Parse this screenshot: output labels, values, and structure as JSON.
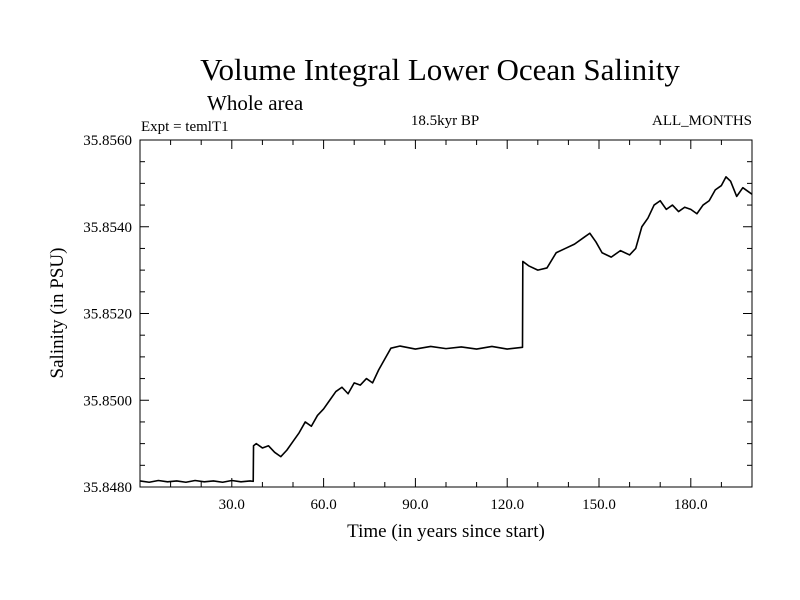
{
  "chart_data": {
    "type": "line",
    "title": "Volume Integral Lower Ocean Salinity",
    "subtitle": "Whole area",
    "annotations": {
      "left": "Expt = temlT1",
      "center": "18.5kyr BP",
      "right": "ALL_MONTHS"
    },
    "xlabel": "Time (in years since start)",
    "ylabel": "Salinity (in PSU)",
    "xlim": [
      0,
      200
    ],
    "ylim": [
      35.848,
      35.856
    ],
    "xticks": [
      {
        "value": 30,
        "label": "30.0"
      },
      {
        "value": 60,
        "label": "60.0"
      },
      {
        "value": 90,
        "label": "90.0"
      },
      {
        "value": 120,
        "label": "120.0"
      },
      {
        "value": 150,
        "label": "150.0"
      },
      {
        "value": 180,
        "label": "180.0"
      }
    ],
    "yticks": [
      {
        "value": 35.848,
        "label": "35.8480"
      },
      {
        "value": 35.85,
        "label": "35.8500"
      },
      {
        "value": 35.852,
        "label": "35.8520"
      },
      {
        "value": 35.854,
        "label": "35.8540"
      },
      {
        "value": 35.856,
        "label": "35.8560"
      }
    ],
    "grid": false,
    "series": [
      {
        "name": "Salinity",
        "color": "#000000",
        "x": [
          0,
          3,
          6,
          9,
          12,
          15,
          18,
          21,
          24,
          27,
          30,
          33,
          36,
          37,
          37.1,
          38,
          40,
          42,
          44,
          46,
          48,
          50,
          52,
          54,
          56,
          58,
          60,
          62,
          64,
          66,
          68,
          70,
          72,
          74,
          76,
          78,
          80,
          82,
          85,
          90,
          95,
          100,
          105,
          110,
          115,
          120,
          125,
          125.1,
          127,
          130,
          133,
          136,
          139,
          142,
          145,
          147,
          149,
          151,
          154,
          157,
          160,
          162,
          164,
          166,
          168,
          170,
          172,
          174,
          176,
          178,
          180,
          182,
          184,
          186,
          188,
          190,
          191.5,
          193,
          195,
          197,
          199,
          200
        ],
        "y": [
          35.84814,
          35.84811,
          35.84815,
          35.84812,
          35.84814,
          35.84811,
          35.84815,
          35.84812,
          35.84814,
          35.84811,
          35.84815,
          35.84812,
          35.84814,
          35.84813,
          35.84895,
          35.849,
          35.8489,
          35.84895,
          35.8488,
          35.8487,
          35.84885,
          35.84905,
          35.84925,
          35.8495,
          35.8494,
          35.84965,
          35.8498,
          35.85,
          35.8502,
          35.8503,
          35.85015,
          35.8504,
          35.85035,
          35.8505,
          35.8504,
          35.8507,
          35.85095,
          35.8512,
          35.85125,
          35.85118,
          35.85124,
          35.85119,
          35.85123,
          35.85118,
          35.85124,
          35.85118,
          35.85122,
          35.8532,
          35.8531,
          35.853,
          35.85305,
          35.8534,
          35.8535,
          35.8536,
          35.85375,
          35.85385,
          35.85365,
          35.8534,
          35.8533,
          35.85345,
          35.85335,
          35.8535,
          35.854,
          35.8542,
          35.8545,
          35.8546,
          35.8544,
          35.8545,
          35.85435,
          35.85445,
          35.8544,
          35.8543,
          35.8545,
          35.8546,
          35.85485,
          35.85495,
          35.85515,
          35.85505,
          35.8547,
          35.8549,
          35.8548,
          35.85475
        ]
      }
    ]
  }
}
